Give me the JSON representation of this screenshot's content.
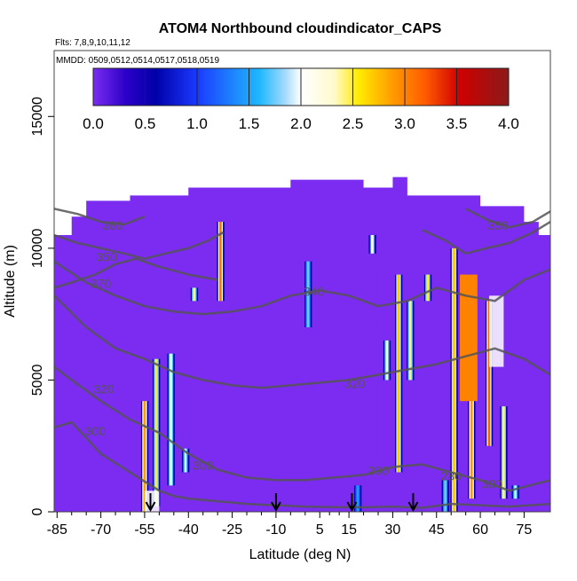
{
  "chart_data": {
    "type": "heatmap",
    "title": "ATOM4 Northbound cloudindicator_CAPS",
    "flights_label": "Flts: 7,8,9,10,11,12",
    "dates_label": "MMDD: 0509,0512,0514,0517,0518,0519",
    "xlabel": "Latitude (deg N)",
    "ylabel": "Altitude (m)",
    "xlim": [
      -86,
      84
    ],
    "ylim": [
      0,
      17500
    ],
    "x_ticks": [
      -85,
      -70,
      -55,
      -40,
      -25,
      -10,
      5,
      15,
      30,
      45,
      60,
      75
    ],
    "x_tick_labels": [
      "-85",
      "-70",
      "-55",
      "-40",
      "-25",
      "-10",
      "5",
      "15",
      "30",
      "45",
      "60",
      "75"
    ],
    "y_ticks": [
      0,
      5000,
      10000,
      15000
    ],
    "y_tick_labels": [
      "0",
      "5000",
      "10000",
      "15000"
    ],
    "colorbar": {
      "range": [
        0,
        4
      ],
      "ticks": [
        0,
        0.5,
        1,
        1.5,
        2,
        2.5,
        3,
        3.5,
        4
      ],
      "tick_labels": [
        "0.0",
        "0.5",
        "1.0",
        "1.5",
        "2.0",
        "2.5",
        "3.0",
        "3.5",
        "4.0"
      ]
    },
    "background_value": 0,
    "orange_value": 3.0,
    "cloud_columns": [
      {
        "lat": -55,
        "alt_min": 0,
        "alt_max": 4200,
        "peak": 3.0
      },
      {
        "lat": -51,
        "alt_min": 200,
        "alt_max": 5800,
        "peak": 2.6
      },
      {
        "lat": -46,
        "alt_min": 1000,
        "alt_max": 6000,
        "peak": 2.4
      },
      {
        "lat": -41,
        "alt_min": 1500,
        "alt_max": 2400,
        "peak": 2.0
      },
      {
        "lat": -38,
        "alt_min": 8000,
        "alt_max": 8500,
        "peak": 2.5
      },
      {
        "lat": -29,
        "alt_min": 8000,
        "alt_max": 11000,
        "peak": 3.2
      },
      {
        "lat": 1,
        "alt_min": 7000,
        "alt_max": 9500,
        "peak": 1.8
      },
      {
        "lat": 18,
        "alt_min": 0,
        "alt_max": 1000,
        "peak": 1.5
      },
      {
        "lat": 23,
        "alt_min": 9800,
        "alt_max": 10500,
        "peak": 2.2
      },
      {
        "lat": 28,
        "alt_min": 5000,
        "alt_max": 6500,
        "peak": 2.3
      },
      {
        "lat": 32,
        "alt_min": 1500,
        "alt_max": 9000,
        "peak": 2.8
      },
      {
        "lat": 36,
        "alt_min": 5000,
        "alt_max": 8000,
        "peak": 2.5
      },
      {
        "lat": 42,
        "alt_min": 8000,
        "alt_max": 9000,
        "peak": 2.6
      },
      {
        "lat": 48,
        "alt_min": 0,
        "alt_max": 1200,
        "peak": 1.8
      },
      {
        "lat": 51,
        "alt_min": 0,
        "alt_max": 10000,
        "peak": 2.8
      },
      {
        "lat": 57,
        "alt_min": 500,
        "alt_max": 8500,
        "peak": 3.0
      },
      {
        "lat": 63,
        "alt_min": 2500,
        "alt_max": 8000,
        "peak": 3.3
      },
      {
        "lat": 68,
        "alt_min": 500,
        "alt_max": 4000,
        "peak": 2.5
      },
      {
        "lat": 72,
        "alt_min": 500,
        "alt_max": 1000,
        "peak": 2.0
      }
    ],
    "contour_lines": [
      {
        "label": "280",
        "x": [
          -86,
          -80,
          -75,
          -70,
          -60,
          -50,
          -45,
          -40,
          -30,
          -20,
          -10,
          0,
          10,
          20,
          30,
          40,
          50,
          60,
          70,
          84
        ],
        "y": [
          3200,
          3400,
          2800,
          2200,
          1500,
          800,
          600,
          500,
          400,
          300,
          250,
          200,
          180,
          170,
          200,
          150,
          300,
          250,
          200,
          300
        ]
      },
      {
        "label": "300",
        "x": [
          -86,
          -80,
          -70,
          -60,
          -50,
          -40,
          -30,
          -20,
          -10,
          0,
          10,
          20,
          30,
          40,
          50,
          60,
          70,
          84
        ],
        "y": [
          5500,
          5000,
          4200,
          3500,
          3000,
          2200,
          1600,
          1300,
          1200,
          1200,
          1300,
          1400,
          1700,
          1800,
          1500,
          1200,
          800,
          1200
        ]
      },
      {
        "label": "320",
        "x": [
          -86,
          -75,
          -65,
          -55,
          -45,
          -35,
          -25,
          -15,
          -5,
          5,
          15,
          25,
          35,
          45,
          55,
          65,
          75,
          84
        ],
        "y": [
          8200,
          7000,
          6200,
          5800,
          5300,
          5000,
          4800,
          4700,
          4800,
          4900,
          5000,
          5200,
          5400,
          5600,
          5900,
          6200,
          5800,
          5200
        ]
      },
      {
        "label": "340",
        "x": [
          -86,
          -75,
          -65,
          -55,
          -45,
          -35,
          -25,
          -15,
          -5,
          5,
          15,
          25,
          35,
          45,
          55,
          65,
          75,
          84
        ],
        "y": [
          9500,
          8700,
          8200,
          7800,
          7600,
          7500,
          7600,
          7800,
          8200,
          8400,
          8200,
          7800,
          8000,
          8500,
          8200,
          8000,
          8800,
          9200
        ]
      },
      {
        "label": "350",
        "x": [
          -86,
          -78,
          -70,
          -62,
          -55,
          -48,
          -40,
          -33,
          -28
        ],
        "y": [
          10500,
          10200,
          10000,
          9800,
          9600,
          9800,
          10000,
          10300,
          10600
        ]
      },
      {
        "label": "350",
        "x": [
          40,
          48,
          55,
          62,
          70,
          78,
          84
        ],
        "y": [
          10700,
          10300,
          9800,
          10000,
          10200,
          10600,
          11000
        ]
      },
      {
        "label": "370",
        "x": [
          -86,
          -80,
          -72,
          -65,
          -58,
          -50,
          -40,
          -30
        ],
        "y": [
          8500,
          8700,
          9000,
          9400,
          9600,
          9300,
          9000,
          8800
        ]
      },
      {
        "label": "380",
        "x": [
          -86,
          -78,
          -70,
          -62,
          -55
        ],
        "y": [
          11500,
          11300,
          11000,
          10900,
          11200
        ]
      },
      {
        "label": "380",
        "x": [
          55,
          62,
          70,
          78,
          84
        ],
        "y": [
          11500,
          11100,
          10800,
          11000,
          11400
        ]
      }
    ],
    "contour_label_positions": [
      {
        "text": "380",
        "lat": -66,
        "alt": 10700
      },
      {
        "text": "350",
        "lat": -68,
        "alt": 9500
      },
      {
        "text": "370",
        "lat": -70,
        "alt": 8500
      },
      {
        "text": "340",
        "lat": 3,
        "alt": 8200
      },
      {
        "text": "320",
        "lat": -69,
        "alt": 4500
      },
      {
        "text": "320",
        "lat": 17,
        "alt": 4700
      },
      {
        "text": "300",
        "lat": -72,
        "alt": 2900
      },
      {
        "text": "300",
        "lat": -35,
        "alt": 1600
      },
      {
        "text": "300",
        "lat": 25,
        "alt": 1400
      },
      {
        "text": "280",
        "lat": 50,
        "alt": 1200
      },
      {
        "text": "350",
        "lat": 66,
        "alt": 10700
      },
      {
        "text": "300",
        "lat": 64,
        "alt": 900
      }
    ],
    "flight_arrows_lat": [
      -53,
      -10,
      16,
      37
    ],
    "data_holes": [
      {
        "lat_min": 63,
        "lat_max": 68,
        "alt_min": 5500,
        "alt_max": 8200
      },
      {
        "lat_min": -55,
        "lat_max": -50,
        "alt_min": 0,
        "alt_max": 800
      }
    ]
  }
}
